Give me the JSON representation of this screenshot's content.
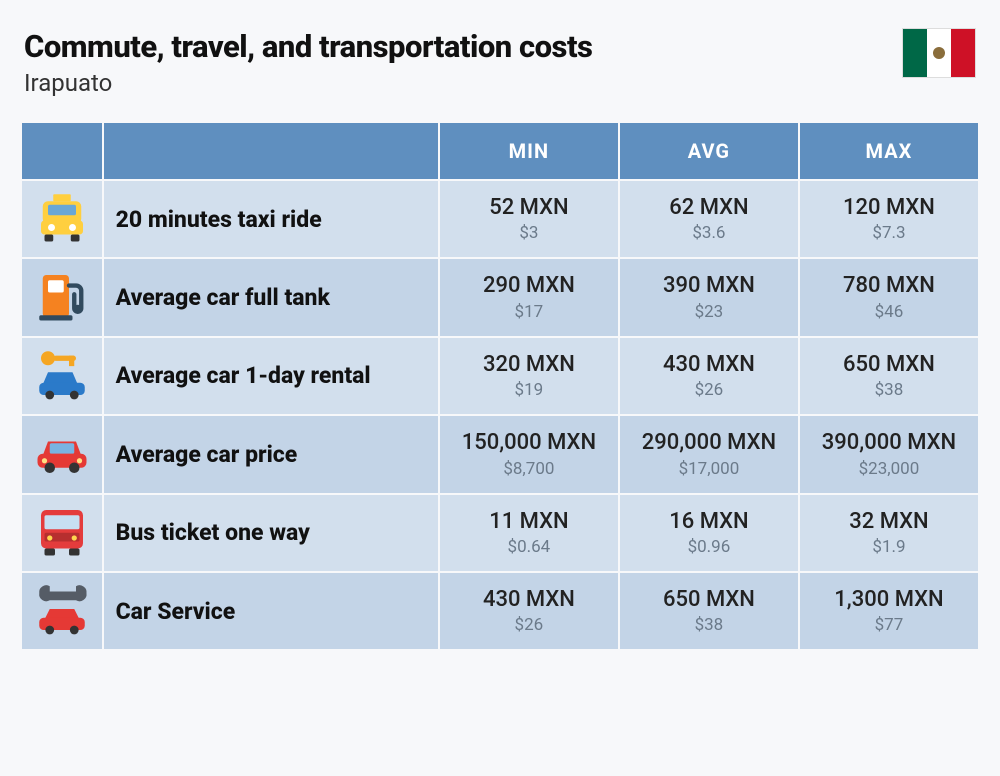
{
  "header": {
    "title": "Commute, travel, and transportation costs",
    "city": "Irapuato",
    "flag_colors": {
      "green": "#006847",
      "white": "#ffffff",
      "red": "#ce1126"
    }
  },
  "columns": {
    "min": "MIN",
    "avg": "AVG",
    "max": "MAX"
  },
  "table": {
    "header_bg": "#5f8fbf",
    "row_a_bg": "#d2dfed",
    "row_b_bg": "#c3d4e7",
    "local_color": "#222222",
    "usd_color": "#6b7a8a"
  },
  "rows": [
    {
      "icon": "taxi",
      "label": "20 minutes taxi ride",
      "min": {
        "local": "52 MXN",
        "usd": "$3"
      },
      "avg": {
        "local": "62 MXN",
        "usd": "$3.6"
      },
      "max": {
        "local": "120 MXN",
        "usd": "$7.3"
      }
    },
    {
      "icon": "fuel-pump",
      "label": "Average car full tank",
      "min": {
        "local": "290 MXN",
        "usd": "$17"
      },
      "avg": {
        "local": "390 MXN",
        "usd": "$23"
      },
      "max": {
        "local": "780 MXN",
        "usd": "$46"
      }
    },
    {
      "icon": "car-rental",
      "label": "Average car 1-day rental",
      "min": {
        "local": "320 MXN",
        "usd": "$19"
      },
      "avg": {
        "local": "430 MXN",
        "usd": "$26"
      },
      "max": {
        "local": "650 MXN",
        "usd": "$38"
      }
    },
    {
      "icon": "car",
      "label": "Average car price",
      "min": {
        "local": "150,000 MXN",
        "usd": "$8,700"
      },
      "avg": {
        "local": "290,000 MXN",
        "usd": "$17,000"
      },
      "max": {
        "local": "390,000 MXN",
        "usd": "$23,000"
      }
    },
    {
      "icon": "bus",
      "label": "Bus ticket one way",
      "min": {
        "local": "11 MXN",
        "usd": "$0.64"
      },
      "avg": {
        "local": "16 MXN",
        "usd": "$0.96"
      },
      "max": {
        "local": "32 MXN",
        "usd": "$1.9"
      }
    },
    {
      "icon": "car-service",
      "label": "Car Service",
      "min": {
        "local": "430 MXN",
        "usd": "$26"
      },
      "avg": {
        "local": "650 MXN",
        "usd": "$38"
      },
      "max": {
        "local": "1,300 MXN",
        "usd": "$77"
      }
    }
  ]
}
